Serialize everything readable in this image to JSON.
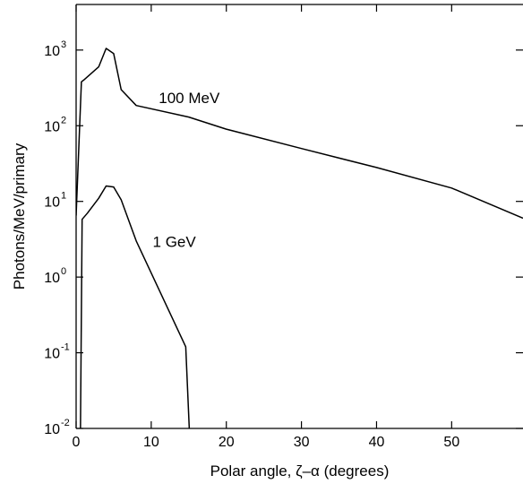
{
  "chart_data": {
    "type": "line",
    "xlabel": "Polar angle, ζ–α (degrees)",
    "ylabel": "Photons/MeV/primary",
    "xlim": [
      0,
      59.5
    ],
    "ylim": [
      0.01,
      4000
    ],
    "yscale": "log",
    "grid": false,
    "x_ticks": [
      {
        "value": 0,
        "label": "0"
      },
      {
        "value": 10,
        "label": "10"
      },
      {
        "value": 20,
        "label": "20"
      },
      {
        "value": 30,
        "label": "30"
      },
      {
        "value": 40,
        "label": "40"
      },
      {
        "value": 50,
        "label": "50"
      }
    ],
    "y_ticks": [
      {
        "value": 0.01,
        "base": "10",
        "exp": "-2"
      },
      {
        "value": 0.1,
        "base": "10",
        "exp": "-1"
      },
      {
        "value": 1,
        "base": "10",
        "exp": "0"
      },
      {
        "value": 10,
        "base": "10",
        "exp": "1"
      },
      {
        "value": 100,
        "base": "10",
        "exp": "2"
      },
      {
        "value": 1000,
        "base": "10",
        "exp": "3"
      }
    ],
    "series": [
      {
        "name": "100 MeV",
        "label_at": [
          11,
          200
        ],
        "points": [
          [
            0,
            6.5
          ],
          [
            0.7,
            380
          ],
          [
            1,
            400
          ],
          [
            3,
            600
          ],
          [
            4,
            1050
          ],
          [
            5,
            900
          ],
          [
            6,
            300
          ],
          [
            8,
            185
          ],
          [
            15,
            130
          ],
          [
            20,
            90
          ],
          [
            30,
            50
          ],
          [
            40,
            28
          ],
          [
            50,
            15
          ],
          [
            59.5,
            6
          ]
        ]
      },
      {
        "name": "1 GeV",
        "label_at": [
          10.2,
          2.5
        ],
        "points": [
          [
            0.5,
            0.001
          ],
          [
            0.8,
            5.8
          ],
          [
            1.5,
            7
          ],
          [
            3,
            11
          ],
          [
            4,
            16
          ],
          [
            5,
            15.5
          ],
          [
            6,
            10.5
          ],
          [
            8,
            3
          ],
          [
            14.6,
            0.12
          ],
          [
            15.5,
            0.001
          ]
        ]
      }
    ]
  }
}
